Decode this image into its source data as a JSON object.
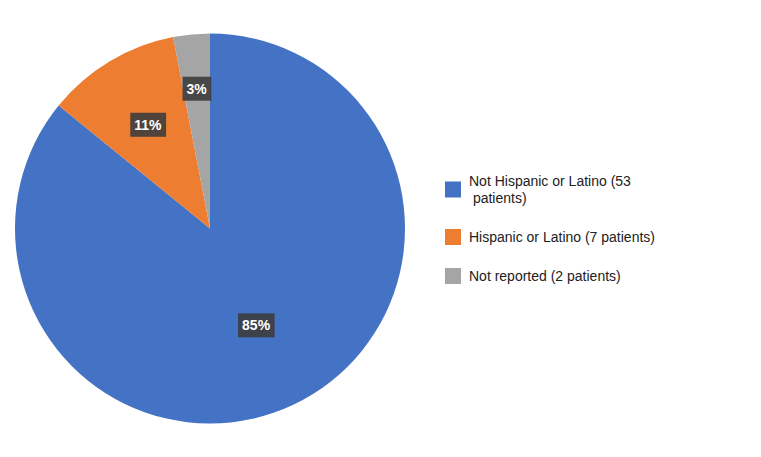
{
  "chart_data": {
    "type": "pie",
    "categories": [
      "Not Hispanic or Latino (53\n patients)",
      "Hispanic or Latino (7 patients)",
      "Not reported (2 patients)"
    ],
    "values": [
      85,
      11,
      3
    ],
    "value_labels": [
      "85%",
      "11%",
      "3%"
    ],
    "colors": [
      "#4472C4",
      "#ED7D31",
      "#A5A5A5"
    ],
    "data_labels": true,
    "legend": "right"
  }
}
